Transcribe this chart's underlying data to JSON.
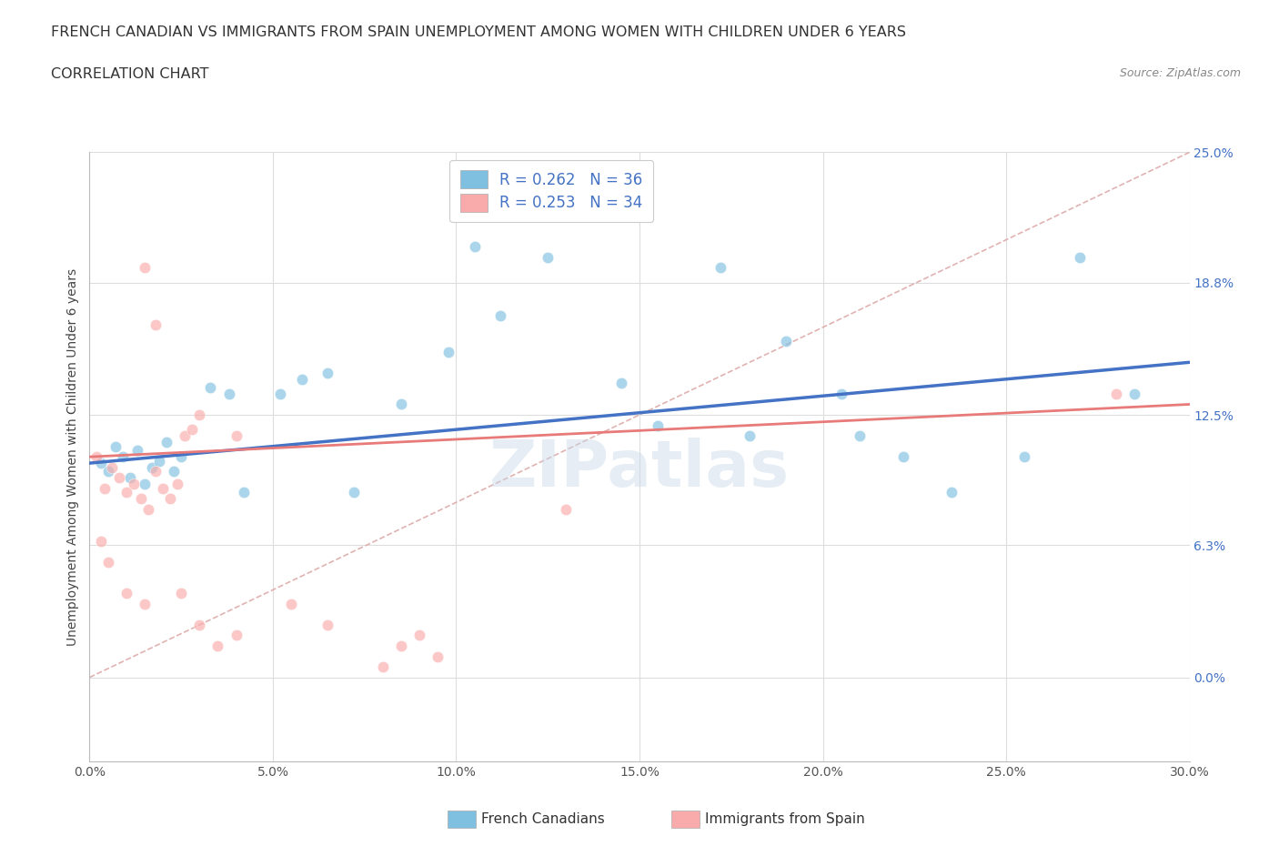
{
  "title_line1": "FRENCH CANADIAN VS IMMIGRANTS FROM SPAIN UNEMPLOYMENT AMONG WOMEN WITH CHILDREN UNDER 6 YEARS",
  "title_line2": "CORRELATION CHART",
  "source": "Source: ZipAtlas.com",
  "xlabel_vals": [
    0.0,
    5.0,
    10.0,
    15.0,
    20.0,
    25.0,
    30.0
  ],
  "ylabel_vals": [
    0.0,
    6.3,
    12.5,
    18.8,
    25.0
  ],
  "ylabel_label": "Unemployment Among Women with Children Under 6 years",
  "legend_entry1": "R = 0.262   N = 36",
  "legend_entry2": "R = 0.253   N = 34",
  "legend_color1": "#7fbfdf",
  "legend_color2": "#f9aaaa",
  "watermark": "ZIPatlas",
  "blue_scatter": [
    [
      0.3,
      10.2
    ],
    [
      0.5,
      9.8
    ],
    [
      0.7,
      11.0
    ],
    [
      0.9,
      10.5
    ],
    [
      1.1,
      9.5
    ],
    [
      1.3,
      10.8
    ],
    [
      1.5,
      9.2
    ],
    [
      1.7,
      10.0
    ],
    [
      1.9,
      10.3
    ],
    [
      2.1,
      11.2
    ],
    [
      2.3,
      9.8
    ],
    [
      2.5,
      10.5
    ],
    [
      3.3,
      13.8
    ],
    [
      3.8,
      13.5
    ],
    [
      4.2,
      8.8
    ],
    [
      5.2,
      13.5
    ],
    [
      5.8,
      14.2
    ],
    [
      6.5,
      14.5
    ],
    [
      7.2,
      8.8
    ],
    [
      8.5,
      13.0
    ],
    [
      9.8,
      15.5
    ],
    [
      10.5,
      20.5
    ],
    [
      11.2,
      17.2
    ],
    [
      12.5,
      20.0
    ],
    [
      14.5,
      14.0
    ],
    [
      15.5,
      12.0
    ],
    [
      17.2,
      19.5
    ],
    [
      18.0,
      11.5
    ],
    [
      19.0,
      16.0
    ],
    [
      20.5,
      13.5
    ],
    [
      21.0,
      11.5
    ],
    [
      22.2,
      10.5
    ],
    [
      23.5,
      8.8
    ],
    [
      25.5,
      10.5
    ],
    [
      27.0,
      20.0
    ],
    [
      28.5,
      13.5
    ]
  ],
  "pink_scatter": [
    [
      0.2,
      10.5
    ],
    [
      0.4,
      9.0
    ],
    [
      0.6,
      10.0
    ],
    [
      0.8,
      9.5
    ],
    [
      1.0,
      8.8
    ],
    [
      1.2,
      9.2
    ],
    [
      1.4,
      8.5
    ],
    [
      1.6,
      8.0
    ],
    [
      1.8,
      9.8
    ],
    [
      2.0,
      9.0
    ],
    [
      2.2,
      8.5
    ],
    [
      2.4,
      9.2
    ],
    [
      2.6,
      11.5
    ],
    [
      2.8,
      11.8
    ],
    [
      1.5,
      19.5
    ],
    [
      1.8,
      16.8
    ],
    [
      3.0,
      12.5
    ],
    [
      4.0,
      11.5
    ],
    [
      0.3,
      6.5
    ],
    [
      0.5,
      5.5
    ],
    [
      1.0,
      4.0
    ],
    [
      1.5,
      3.5
    ],
    [
      2.5,
      4.0
    ],
    [
      3.0,
      2.5
    ],
    [
      3.5,
      1.5
    ],
    [
      4.0,
      2.0
    ],
    [
      5.5,
      3.5
    ],
    [
      6.5,
      2.5
    ],
    [
      8.0,
      0.5
    ],
    [
      8.5,
      1.5
    ],
    [
      9.0,
      2.0
    ],
    [
      9.5,
      1.0
    ],
    [
      13.0,
      8.0
    ],
    [
      28.0,
      13.5
    ]
  ],
  "blue_line_x": [
    0.0,
    30.0
  ],
  "blue_line_y": [
    10.2,
    15.0
  ],
  "pink_line_x": [
    0.0,
    30.0
  ],
  "pink_line_y": [
    10.5,
    13.0
  ],
  "ref_line_x": [
    0.0,
    30.0
  ],
  "ref_line_y": [
    0.0,
    25.0
  ],
  "scatter_size": 80,
  "scatter_alpha": 0.65,
  "blue_color": "#7fbfdf",
  "pink_color": "#f9aaaa",
  "ref_line_color": "#ddaaaa",
  "xlim": [
    0.0,
    30.0
  ],
  "ylim": [
    -4.0,
    25.0
  ]
}
